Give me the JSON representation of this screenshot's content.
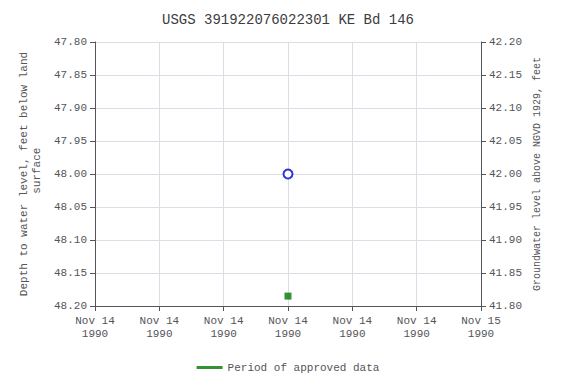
{
  "chart_data": {
    "type": "scatter",
    "title": "USGS 391922076022301 KE Bd 146",
    "ylabel": "Depth to water level, feet below land\n surface",
    "y2label": "Groundwater level above NGVD 1929, feet",
    "categories": [
      "Nov 14\n1990",
      "Nov 14\n1990",
      "Nov 14\n1990",
      "Nov 14\n1990",
      "Nov 14\n1990",
      "Nov 14\n1990",
      "Nov 15\n1990"
    ],
    "series": [
      {
        "values": [
          null,
          null,
          null,
          48.0,
          null,
          null,
          null
        ],
        "color": "#0000cc",
        "marker": "hollow_circle"
      },
      {
        "name": "Period of approved data",
        "values": [
          null,
          null,
          null,
          48.185,
          null,
          null,
          null
        ],
        "color": "#007700",
        "marker": "square"
      }
    ],
    "ylim": [
      48.2,
      47.8
    ],
    "yticks": [
      {
        "value": 47.8,
        "label": "47.80"
      },
      {
        "value": 47.85,
        "label": "47.85"
      },
      {
        "value": 47.9,
        "label": "47.90"
      },
      {
        "value": 47.95,
        "label": "47.95"
      },
      {
        "value": 48.0,
        "label": "48.00"
      },
      {
        "value": 48.05,
        "label": "48.05"
      },
      {
        "value": 48.1,
        "label": "48.10"
      },
      {
        "value": 48.15,
        "label": "48.15"
      },
      {
        "value": 48.2,
        "label": "48.20"
      }
    ],
    "y2lim": [
      41.8,
      42.2
    ],
    "y2ticks": [
      {
        "value": 41.8,
        "label": "41.80"
      },
      {
        "value": 41.85,
        "label": "41.85"
      },
      {
        "value": 41.9,
        "label": "41.90"
      },
      {
        "value": 41.95,
        "label": "41.95"
      },
      {
        "value": 42.0,
        "label": "42.00"
      },
      {
        "value": 42.05,
        "label": "42.05"
      },
      {
        "value": 42.1,
        "label": "42.10"
      },
      {
        "value": 42.15,
        "label": "42.15"
      },
      {
        "value": 42.2,
        "label": "42.20"
      }
    ],
    "grid": true,
    "legend": "bottom"
  }
}
